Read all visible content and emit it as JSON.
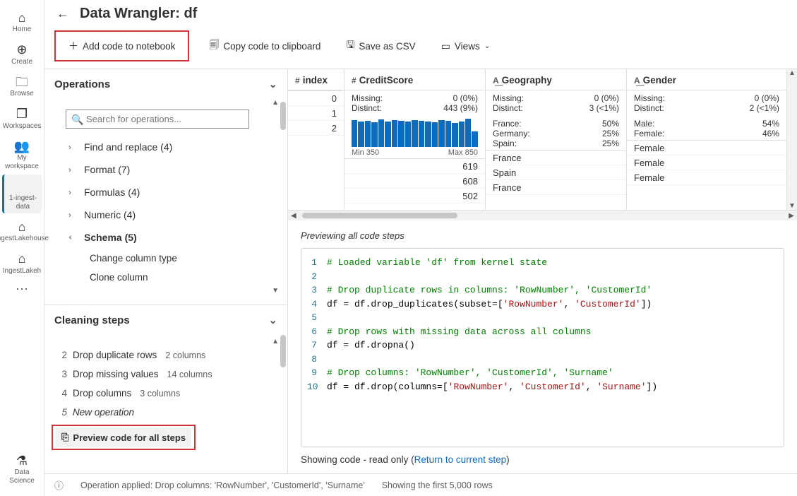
{
  "rail": {
    "items": [
      {
        "icon": "⌂",
        "label": "Home"
      },
      {
        "icon": "⊕",
        "label": "Create"
      },
      {
        "icon": "🗀",
        "label": "Browse"
      },
      {
        "icon": "❐",
        "label": "Workspaces"
      },
      {
        "icon": "👥",
        "label": "My workspace"
      },
      {
        "icon": "</>",
        "label": "1-ingest-data",
        "active": true
      },
      {
        "icon": "⌂",
        "label": "IngestLakehouse"
      },
      {
        "icon": "⌂",
        "label": "IngestLakeh"
      }
    ],
    "more": "⋯",
    "bottom": {
      "icon": "⚗",
      "label": "Data Science"
    }
  },
  "title": "Data Wrangler: df",
  "toolbar": {
    "add": "Add code to notebook",
    "copy": "Copy code to clipboard",
    "save": "Save as CSV",
    "views": "Views"
  },
  "panels": {
    "operations": "Operations",
    "search_ph": "Search for operations...",
    "groups": [
      {
        "label": "Find and replace (4)",
        "expanded": false
      },
      {
        "label": "Format (7)",
        "expanded": false
      },
      {
        "label": "Formulas (4)",
        "expanded": false
      },
      {
        "label": "Numeric (4)",
        "expanded": false
      },
      {
        "label": "Schema (5)",
        "expanded": true,
        "items": [
          "Change column type",
          "Clone column"
        ]
      }
    ],
    "cleaning": "Cleaning steps",
    "steps": [
      {
        "n": "2",
        "label": "Drop duplicate rows",
        "sub": "2 columns"
      },
      {
        "n": "3",
        "label": "Drop missing values",
        "sub": "14 columns"
      },
      {
        "n": "4",
        "label": "Drop columns",
        "sub": "3 columns"
      },
      {
        "n": "5",
        "label": "New operation",
        "italic": true
      }
    ],
    "preview": "Preview code for all steps"
  },
  "grid": {
    "columns": [
      {
        "name": "index",
        "type": "#",
        "width": "col-index",
        "cells": [
          "0",
          "1",
          "2"
        ],
        "align": "right"
      },
      {
        "name": "CreditScore",
        "type": "#",
        "width": "col-credit",
        "stats": [
          [
            "Missing:",
            "0 (0%)"
          ],
          [
            "Distinct:",
            "443 (9%)"
          ]
        ],
        "histo": {
          "bars": [
            38,
            36,
            37,
            35,
            39,
            36,
            38,
            37,
            36,
            38,
            37,
            36,
            35,
            38,
            37,
            34,
            36,
            40,
            22
          ],
          "min": "Min 350",
          "max": "Max 850"
        },
        "cells": [
          "619",
          "608",
          "502"
        ],
        "align": "right"
      },
      {
        "name": "Geography",
        "type": "A͟",
        "width": "col-geo",
        "stats": [
          [
            "Missing:",
            "0 (0%)"
          ],
          [
            "Distinct:",
            "3 (<1%)"
          ]
        ],
        "cats": [
          [
            "France:",
            "50%"
          ],
          [
            "Germany:",
            "25%"
          ],
          [
            "Spain:",
            "25%"
          ]
        ],
        "cells": [
          "France",
          "Spain",
          "France"
        ],
        "align": "left"
      },
      {
        "name": "Gender",
        "type": "A͟",
        "width": "col-gender",
        "stats": [
          [
            "Missing:",
            "0 (0%)"
          ],
          [
            "Distinct:",
            "2 (<1%)"
          ]
        ],
        "cats": [
          [
            "Male:",
            "54%"
          ],
          [
            "Female:",
            "46%"
          ]
        ],
        "cells": [
          "Female",
          "Female",
          "Female"
        ],
        "align": "left"
      }
    ]
  },
  "code": {
    "title": "Previewing all code steps",
    "lines": [
      {
        "n": 1,
        "seg": [
          [
            "comment",
            "# Loaded variable 'df' from kernel state"
          ]
        ]
      },
      {
        "n": 2,
        "seg": []
      },
      {
        "n": 3,
        "seg": [
          [
            "comment",
            "# Drop duplicate rows in columns: 'RowNumber', 'CustomerId'"
          ]
        ]
      },
      {
        "n": 4,
        "seg": [
          [
            "plain",
            "df = df.drop_duplicates(subset=["
          ],
          [
            "str",
            "'RowNumber'"
          ],
          [
            "plain",
            ", "
          ],
          [
            "str",
            "'CustomerId'"
          ],
          [
            "plain",
            "])"
          ]
        ]
      },
      {
        "n": 5,
        "seg": []
      },
      {
        "n": 6,
        "seg": [
          [
            "comment",
            "# Drop rows with missing data across all columns"
          ]
        ]
      },
      {
        "n": 7,
        "seg": [
          [
            "plain",
            "df = df.dropna()"
          ]
        ]
      },
      {
        "n": 8,
        "seg": []
      },
      {
        "n": 9,
        "seg": [
          [
            "comment",
            "# Drop columns: 'RowNumber', 'CustomerId', 'Surname'"
          ]
        ]
      },
      {
        "n": 10,
        "seg": [
          [
            "plain",
            "df = df.drop(columns=["
          ],
          [
            "str",
            "'RowNumber'"
          ],
          [
            "plain",
            ", "
          ],
          [
            "str",
            "'CustomerId'"
          ],
          [
            "plain",
            ", "
          ],
          [
            "str",
            "'Surname'"
          ],
          [
            "plain",
            "])"
          ]
        ]
      }
    ],
    "return_prefix": "Showing code - read only (",
    "return_link": "Return to current step",
    "return_suffix": ")"
  },
  "status": {
    "msg": "Operation applied: Drop columns: 'RowNumber', 'CustomerId', 'Surname'",
    "rows": "Showing the first 5,000 rows"
  }
}
